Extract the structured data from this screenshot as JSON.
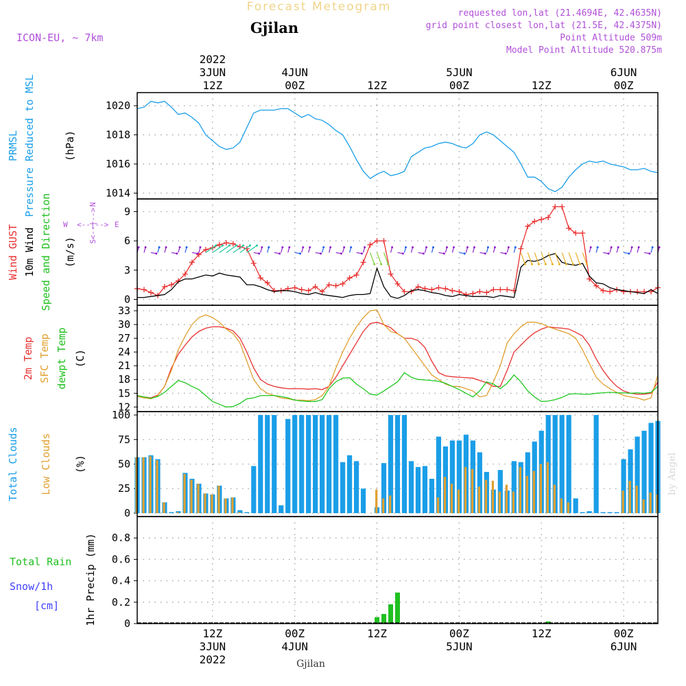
{
  "header": {
    "title": "Forecast Meteogram",
    "location": "Gjilan",
    "model": "ICON-EU, ~ 7km",
    "requested": "requested lon,lat (21.4694E, 42.4635N)",
    "grid_point": "grid point closest lon,lat (21.5E, 42.4375N)",
    "point_altitude": "Point Altitude 509m",
    "model_altitude": "Model Point Altitude 520.875m",
    "footer_location": "Gjilan",
    "watermark": "by Angel"
  },
  "time_axis": {
    "top_labels": [
      {
        "hour": 12,
        "lines": [
          "2022",
          "3JUN",
          "12Z"
        ]
      },
      {
        "hour": 24,
        "lines": [
          "4JUN",
          "00Z"
        ]
      },
      {
        "hour": 36,
        "lines": [
          "12Z"
        ]
      },
      {
        "hour": 48,
        "lines": [
          "5JUN",
          "00Z"
        ]
      },
      {
        "hour": 60,
        "lines": [
          "12Z"
        ]
      },
      {
        "hour": 72,
        "lines": [
          "6JUN",
          "00Z"
        ]
      }
    ],
    "bottom_labels": [
      {
        "hour": 12,
        "lines": [
          "12Z",
          "3JUN",
          "2022"
        ]
      },
      {
        "hour": 24,
        "lines": [
          "00Z",
          "4JUN"
        ]
      },
      {
        "hour": 36,
        "lines": [
          "12Z"
        ]
      },
      {
        "hour": 48,
        "lines": [
          "00Z",
          "5JUN"
        ]
      },
      {
        "hour": 60,
        "lines": [
          "12Z"
        ]
      },
      {
        "hour": 72,
        "lines": [
          "00Z",
          "6JUN"
        ]
      }
    ],
    "range_hours": [
      1,
      77
    ]
  },
  "chart_data": [
    {
      "type": "line",
      "panel": "pressure",
      "title_lines": [
        "PRMSL",
        "Pressure Reduced to MSL"
      ],
      "ylabel": "(hPa)",
      "yticks": [
        1014,
        1016,
        1018,
        1020
      ],
      "ylim": [
        1013.6,
        1020.9
      ],
      "x_hours": [
        1,
        2,
        3,
        4,
        5,
        6,
        7,
        8,
        9,
        10,
        11,
        12,
        13,
        14,
        15,
        16,
        17,
        18,
        19,
        20,
        21,
        22,
        23,
        24,
        25,
        26,
        27,
        28,
        29,
        30,
        31,
        32,
        33,
        34,
        35,
        36,
        37,
        38,
        39,
        40,
        41,
        42,
        43,
        44,
        45,
        46,
        47,
        48,
        49,
        50,
        51,
        52,
        53,
        54,
        55,
        56,
        57,
        58,
        59,
        60,
        61,
        62,
        63,
        64,
        65,
        66,
        67,
        68,
        69,
        70,
        71,
        72,
        73,
        74,
        75,
        76,
        77
      ],
      "series": [
        {
          "name": "PRMSL",
          "color": "#1a9ee8",
          "values": [
            1019.8,
            1019.9,
            1020.3,
            1020.2,
            1020.3,
            1019.9,
            1019.4,
            1019.5,
            1019.2,
            1018.8,
            1018.0,
            1017.6,
            1017.2,
            1017.0,
            1017.1,
            1017.5,
            1018.5,
            1019.5,
            1019.7,
            1019.7,
            1019.7,
            1019.8,
            1019.8,
            1019.5,
            1019.2,
            1019.4,
            1019.1,
            1019.0,
            1018.7,
            1018.3,
            1018.0,
            1017.2,
            1016.3,
            1015.5,
            1015.0,
            1015.3,
            1015.5,
            1015.2,
            1015.3,
            1015.5,
            1016.5,
            1016.8,
            1017.1,
            1017.2,
            1017.4,
            1017.5,
            1017.4,
            1017.2,
            1017.1,
            1017.4,
            1018.0,
            1018.2,
            1018.0,
            1017.6,
            1017.2,
            1016.8,
            1016.0,
            1015.1,
            1015.1,
            1014.8,
            1014.3,
            1014.1,
            1014.4,
            1015.1,
            1015.6,
            1016.0,
            1016.2,
            1016.1,
            1016.2,
            1016.0,
            1015.9,
            1015.8,
            1015.6,
            1015.6,
            1015.7,
            1015.5,
            1015.4
          ]
        }
      ]
    },
    {
      "type": "line",
      "panel": "wind",
      "title_lines": [
        "Wind GUST",
        "10m Wind",
        "Speed and Direction"
      ],
      "ylabel": "(m/s)",
      "compass": {
        "north": "N",
        "south": "S",
        "west": "W",
        "east": "E"
      },
      "yticks": [
        0,
        3,
        6,
        9
      ],
      "ylim": [
        -0.6,
        10.3
      ],
      "x_hours": [
        1,
        2,
        3,
        4,
        5,
        6,
        7,
        8,
        9,
        10,
        11,
        12,
        13,
        14,
        15,
        16,
        17,
        18,
        19,
        20,
        21,
        22,
        23,
        24,
        25,
        26,
        27,
        28,
        29,
        30,
        31,
        32,
        33,
        34,
        35,
        36,
        37,
        38,
        39,
        40,
        41,
        42,
        43,
        44,
        45,
        46,
        47,
        48,
        49,
        50,
        51,
        52,
        53,
        54,
        55,
        56,
        57,
        58,
        59,
        60,
        61,
        62,
        63,
        64,
        65,
        66,
        67,
        68,
        69,
        70,
        71,
        72,
        73,
        74,
        75,
        76,
        77
      ],
      "series": [
        {
          "name": "Wind GUST",
          "color": "#e83030",
          "marker": "+",
          "values": [
            1.1,
            1.0,
            0.7,
            0.4,
            1.3,
            1.5,
            1.9,
            2.6,
            3.8,
            4.6,
            5.1,
            5.3,
            5.6,
            5.8,
            5.7,
            5.4,
            5.2,
            3.7,
            2.2,
            1.7,
            0.9,
            0.9,
            1.1,
            1.2,
            1.0,
            0.9,
            1.3,
            0.8,
            1.5,
            1.4,
            1.6,
            2.2,
            2.5,
            3.8,
            5.6,
            6.0,
            6.0,
            2.6,
            1.6,
            0.8,
            0.8,
            1.3,
            1.1,
            1.0,
            1.2,
            1.1,
            0.9,
            0.8,
            0.5,
            0.6,
            0.8,
            0.7,
            1.0,
            1.0,
            1.0,
            0.9,
            5.2,
            7.5,
            8.0,
            8.2,
            8.4,
            9.5,
            9.5,
            7.3,
            6.8,
            6.8,
            2.1,
            1.4,
            0.9,
            0.8,
            1.0,
            0.8,
            0.8,
            0.8,
            0.8,
            0.8,
            1.2
          ]
        },
        {
          "name": "10m Wind",
          "color": "#000000",
          "values": [
            0.2,
            0.2,
            0.3,
            0.4,
            0.5,
            1.0,
            1.8,
            2.1,
            2.1,
            2.3,
            2.5,
            2.4,
            2.7,
            2.5,
            2.4,
            2.3,
            1.5,
            1.5,
            1.3,
            1.0,
            0.8,
            0.9,
            0.9,
            0.8,
            0.6,
            0.5,
            0.7,
            0.5,
            0.4,
            0.3,
            0.2,
            0.4,
            0.5,
            0.5,
            0.6,
            3.2,
            1.3,
            0.3,
            0.1,
            0.4,
            0.9,
            1.0,
            0.9,
            0.7,
            0.6,
            0.4,
            0.3,
            0.5,
            0.4,
            0.3,
            0.3,
            0.3,
            0.2,
            0.4,
            0.3,
            0.2,
            3.3,
            4.0,
            3.9,
            4.1,
            4.5,
            4.7,
            3.8,
            3.6,
            3.5,
            3.7,
            2.4,
            1.7,
            1.6,
            1.2,
            1.0,
            0.9,
            0.8,
            0.7,
            0.6,
            1.0,
            0.6
          ]
        }
      ]
    },
    {
      "type": "line",
      "panel": "temperature",
      "title_lines": [
        "2m Temp",
        "SFC Temp",
        "dewpt Temp"
      ],
      "ylabel": "(C)",
      "yticks": [
        12,
        15,
        18,
        21,
        24,
        27,
        30,
        33
      ],
      "ylim": [
        11.0,
        34.2
      ],
      "x_hours": [
        1,
        2,
        3,
        4,
        5,
        6,
        7,
        8,
        9,
        10,
        11,
        12,
        13,
        14,
        15,
        16,
        17,
        18,
        19,
        20,
        21,
        22,
        23,
        24,
        25,
        26,
        27,
        28,
        29,
        30,
        31,
        32,
        33,
        34,
        35,
        36,
        37,
        38,
        39,
        40,
        41,
        42,
        43,
        44,
        45,
        46,
        47,
        48,
        49,
        50,
        51,
        52,
        53,
        54,
        55,
        56,
        57,
        58,
        59,
        60,
        61,
        62,
        63,
        64,
        65,
        66,
        67,
        68,
        69,
        70,
        71,
        72,
        73,
        74,
        75,
        76,
        77
      ],
      "series": [
        {
          "name": "2m Temp",
          "color": "#e83030",
          "values": [
            14.5,
            14.2,
            14.0,
            14.6,
            16.5,
            20.5,
            23.5,
            25.5,
            27.3,
            28.5,
            29.2,
            29.5,
            29.5,
            29.2,
            28.6,
            27.0,
            24.0,
            20.5,
            18.0,
            17.0,
            16.5,
            16.2,
            16.0,
            16.0,
            16.0,
            15.9,
            16.0,
            15.8,
            16.5,
            18.5,
            21.0,
            23.5,
            26.0,
            28.5,
            30.2,
            30.5,
            30.0,
            29.3,
            28.0,
            27.0,
            27.0,
            26.5,
            25.0,
            22.0,
            19.5,
            18.8,
            18.6,
            18.5,
            18.4,
            18.3,
            17.8,
            17.3,
            16.5,
            16.5,
            20.0,
            24.0,
            25.5,
            27.0,
            28.2,
            29.0,
            29.5,
            29.3,
            29.2,
            29.0,
            28.3,
            27.5,
            25.5,
            22.5,
            20.0,
            18.0,
            16.5,
            15.5,
            15.0,
            14.8,
            14.8,
            15.0,
            17.5
          ]
        },
        {
          "name": "SFC Temp",
          "color": "#e0a030",
          "values": [
            14.3,
            14.0,
            13.8,
            14.5,
            16.5,
            20.0,
            24.5,
            27.5,
            30.0,
            31.5,
            32.1,
            31.5,
            30.5,
            29.0,
            28.0,
            26.0,
            22.0,
            18.0,
            16.0,
            15.0,
            14.5,
            14.0,
            13.8,
            13.5,
            13.5,
            13.4,
            13.6,
            14.5,
            16.5,
            20.5,
            24.0,
            27.0,
            29.5,
            31.5,
            33.0,
            33.2,
            30.0,
            28.5,
            28.0,
            27.0,
            25.0,
            23.0,
            21.0,
            19.0,
            18.0,
            17.0,
            16.5,
            16.5,
            16.0,
            15.5,
            14.2,
            14.5,
            17.5,
            21.0,
            26.0,
            28.0,
            29.5,
            30.5,
            30.5,
            30.2,
            29.5,
            29.0,
            28.5,
            28.0,
            27.0,
            24.5,
            21.5,
            18.5,
            17.0,
            16.0,
            15.2,
            14.5,
            14.2,
            14.0,
            13.5,
            14.0,
            19.0
          ]
        },
        {
          "name": "dewpt Temp",
          "color": "#20c820",
          "values": [
            14.5,
            14.2,
            13.9,
            14.3,
            15.2,
            16.5,
            17.8,
            17.3,
            16.5,
            15.8,
            14.5,
            13.2,
            12.6,
            12.0,
            12.1,
            12.8,
            13.8,
            14.0,
            14.5,
            14.5,
            14.5,
            14.3,
            14.0,
            13.5,
            13.3,
            13.2,
            13.2,
            13.6,
            16.0,
            17.5,
            18.3,
            18.4,
            17.0,
            16.0,
            14.8,
            14.6,
            15.5,
            16.5,
            17.5,
            19.5,
            18.5,
            18.0,
            17.9,
            17.8,
            17.6,
            17.2,
            16.5,
            15.8,
            15.0,
            14.2,
            15.5,
            17.5,
            17.0,
            16.0,
            17.2,
            19.0,
            17.5,
            15.5,
            14.2,
            13.2,
            13.3,
            13.6,
            14.1,
            14.8,
            14.9,
            14.8,
            14.8,
            15.0,
            15.1,
            15.2,
            15.1,
            15.1,
            15.0,
            15.1,
            15.0,
            15.2,
            16.5
          ]
        }
      ]
    },
    {
      "type": "bar",
      "panel": "clouds",
      "title_lines": [
        "Total Clouds",
        "Low Clouds"
      ],
      "ylabel": "(%)",
      "yticks": [
        0,
        25,
        50,
        75,
        100
      ],
      "ylim": [
        -3.5,
        103.5
      ],
      "x_hours": [
        1,
        2,
        3,
        4,
        5,
        6,
        7,
        8,
        9,
        10,
        11,
        12,
        13,
        14,
        15,
        16,
        17,
        18,
        19,
        20,
        21,
        22,
        23,
        24,
        25,
        26,
        27,
        28,
        29,
        30,
        31,
        32,
        33,
        34,
        35,
        36,
        37,
        38,
        39,
        40,
        41,
        42,
        43,
        44,
        45,
        46,
        47,
        48,
        49,
        50,
        51,
        52,
        53,
        54,
        55,
        56,
        57,
        58,
        59,
        60,
        61,
        62,
        63,
        64,
        65,
        66,
        67,
        68,
        69,
        70,
        71,
        72,
        73,
        74,
        75,
        76,
        77
      ],
      "series": [
        {
          "name": "Total Clouds",
          "color": "#1a9ee8",
          "values": [
            57,
            57,
            59,
            55,
            11,
            1,
            2,
            41,
            35,
            30,
            20,
            19,
            28,
            15,
            16,
            3,
            1,
            48,
            100,
            100,
            100,
            8,
            96,
            100,
            100,
            100,
            100,
            100,
            100,
            100,
            52,
            59,
            53,
            25,
            0,
            6,
            51,
            100,
            100,
            100,
            53,
            47,
            48,
            35,
            78,
            68,
            74,
            74,
            80,
            74,
            62,
            42,
            24,
            44,
            23,
            53,
            52,
            62,
            73,
            84,
            100,
            100,
            100,
            100,
            15,
            1,
            2,
            100,
            1,
            1,
            1,
            55,
            65,
            78,
            84,
            92,
            94
          ]
        },
        {
          "name": "Low Clouds",
          "color": "#e0a030",
          "values": [
            57,
            57,
            58,
            54,
            11,
            0,
            1,
            40,
            34,
            30,
            20,
            19,
            28,
            15,
            16,
            1,
            0,
            0,
            0,
            0,
            0,
            0,
            0,
            0,
            0,
            0,
            0,
            0,
            0,
            0,
            0,
            0,
            0,
            0,
            0,
            24,
            15,
            18,
            0,
            0,
            0,
            0,
            0,
            0,
            16,
            37,
            30,
            24,
            47,
            45,
            27,
            34,
            33,
            22,
            29,
            22,
            47,
            38,
            43,
            50,
            52,
            29,
            15,
            11,
            0,
            0,
            0,
            0,
            0,
            0,
            0,
            23,
            33,
            28,
            14,
            21,
            19
          ]
        }
      ]
    },
    {
      "type": "bar",
      "panel": "precip",
      "title_lines": [
        "Total  Rain",
        "Snow/1h",
        "[cm]"
      ],
      "ylabel": "1hr Precip (mm)",
      "yticks": [
        0,
        0.2,
        0.4,
        0.6,
        0.8
      ],
      "ylim": [
        0,
        1.0
      ],
      "series": [
        {
          "name": "Total Rain",
          "color": "#20c020",
          "x_hours": [
            36,
            37,
            38,
            39,
            61
          ],
          "values": [
            0.06,
            0.09,
            0.18,
            0.29,
            0.02
          ]
        },
        {
          "name": "Snow/1h",
          "color": "#4040ff",
          "values": []
        }
      ]
    }
  ]
}
